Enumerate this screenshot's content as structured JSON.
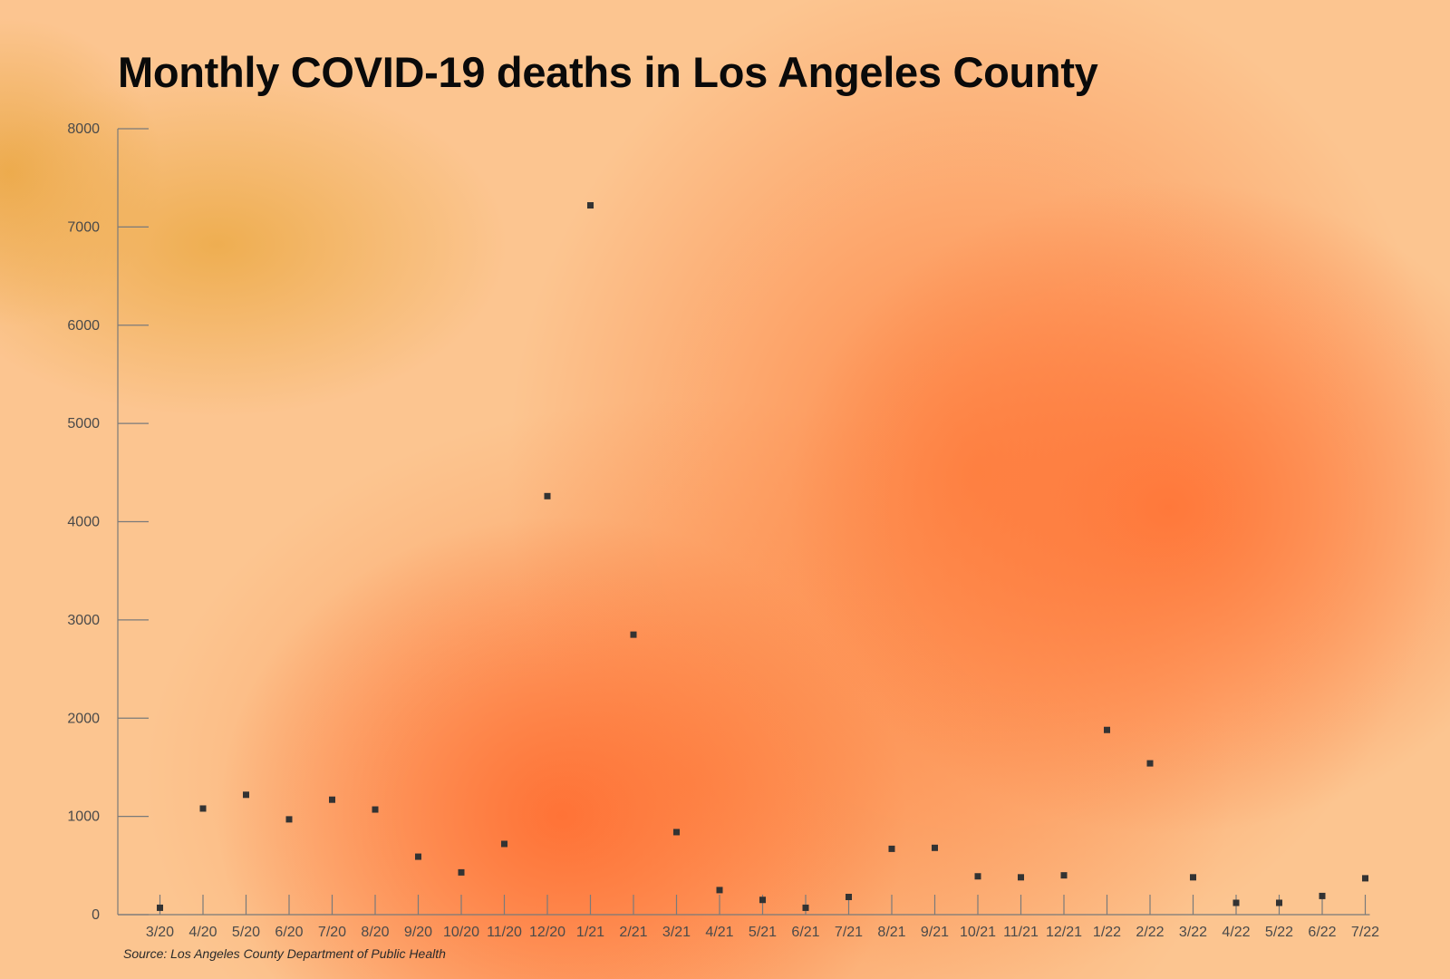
{
  "chart_data": {
    "type": "scatter",
    "title": "Monthly COVID-19 deaths in Los Angeles County",
    "source": "Source: Los Angeles County Department of Public Health",
    "xlabel": "",
    "ylabel": "",
    "ylim": [
      0,
      8000
    ],
    "yticks": [
      "0",
      "1000",
      "2000",
      "3000",
      "4000",
      "5000",
      "6000",
      "7000",
      "8000"
    ],
    "grid": false,
    "legend": "none",
    "marker_color": "#333333",
    "background_colors": [
      "#fcc590",
      "#ff7638",
      "#ecaa46"
    ],
    "categories": [
      "3/20",
      "4/20",
      "5/20",
      "6/20",
      "7/20",
      "8/20",
      "9/20",
      "10/20",
      "11/20",
      "12/20",
      "1/21",
      "2/21",
      "3/21",
      "4/21",
      "5/21",
      "6/21",
      "7/21",
      "8/21",
      "9/21",
      "10/21",
      "11/21",
      "12/21",
      "1/22",
      "2/22",
      "3/22",
      "4/22",
      "5/22",
      "6/22",
      "7/22"
    ],
    "values": [
      70,
      1080,
      1220,
      970,
      1170,
      1070,
      590,
      430,
      720,
      4260,
      7220,
      2850,
      840,
      250,
      150,
      70,
      180,
      670,
      680,
      390,
      380,
      400,
      1880,
      1540,
      380,
      120,
      120,
      190,
      370
    ]
  }
}
